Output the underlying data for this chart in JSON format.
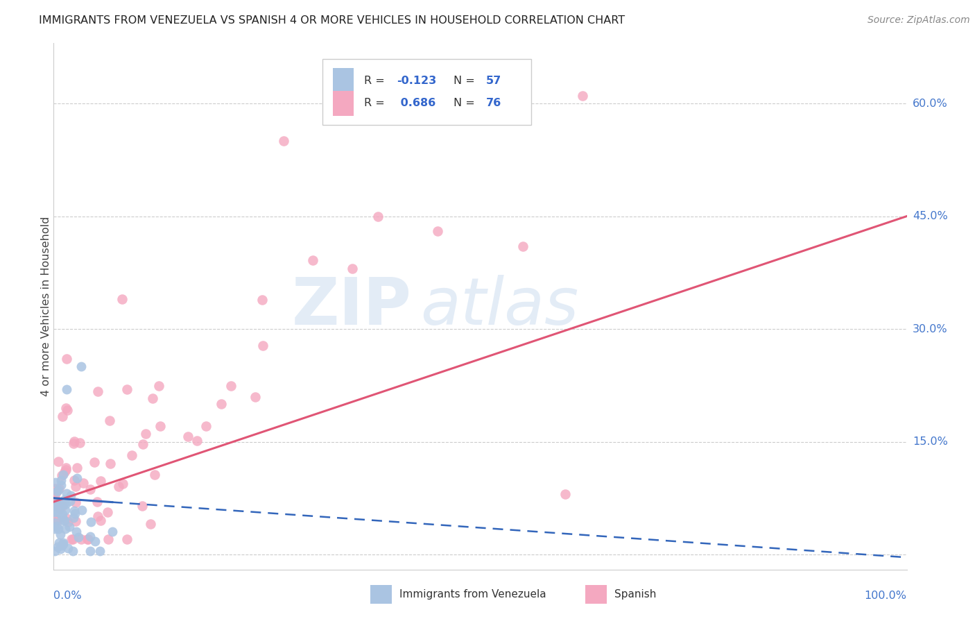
{
  "title": "IMMIGRANTS FROM VENEZUELA VS SPANISH 4 OR MORE VEHICLES IN HOUSEHOLD CORRELATION CHART",
  "source": "Source: ZipAtlas.com",
  "ylabel": "4 or more Vehicles in Household",
  "ytick_vals": [
    0.0,
    0.15,
    0.3,
    0.45,
    0.6
  ],
  "ytick_labels": [
    "",
    "15.0%",
    "30.0%",
    "45.0%",
    "60.0%"
  ],
  "color_blue": "#aac4e2",
  "color_blue_line": "#3366bb",
  "color_pink": "#f4a8c0",
  "color_pink_line": "#e05575",
  "watermark_zip": "ZIP",
  "watermark_atlas": "atlas",
  "r_blue": -0.123,
  "n_blue": 57,
  "r_pink": 0.686,
  "n_pink": 76,
  "xlim": [
    0.0,
    1.0
  ],
  "ylim": [
    -0.02,
    0.68
  ]
}
